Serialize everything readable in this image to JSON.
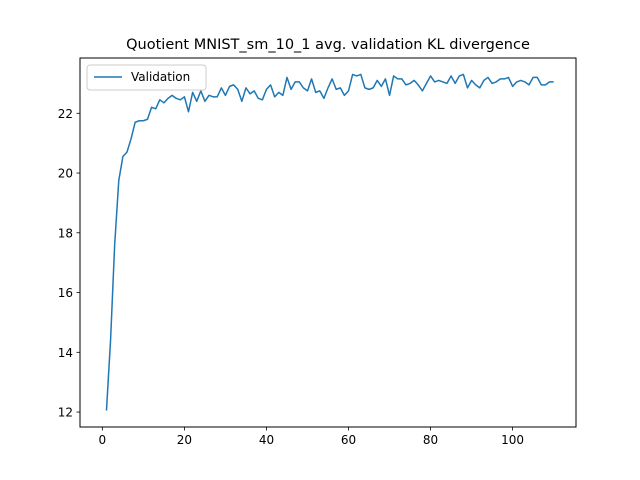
{
  "chart_data": {
    "type": "line",
    "title": "Quotient MNIST_sm_10_1 avg. validation KL divergence",
    "xlabel": "",
    "ylabel": "",
    "xlim": [
      -5.45,
      115.45
    ],
    "ylim": [
      11.5,
      23.85
    ],
    "xticks": [
      0,
      20,
      40,
      60,
      80,
      100
    ],
    "yticks": [
      12,
      14,
      16,
      18,
      20,
      22
    ],
    "legend": {
      "position": "top-left"
    },
    "grid": false,
    "colors": {
      "series": "#1f77b4"
    },
    "series": [
      {
        "name": "Validation",
        "x": [
          1,
          2,
          3,
          4,
          5,
          6,
          7,
          8,
          9,
          10,
          11,
          12,
          13,
          14,
          15,
          16,
          17,
          18,
          19,
          20,
          21,
          22,
          23,
          24,
          25,
          26,
          27,
          28,
          29,
          30,
          31,
          32,
          33,
          34,
          35,
          36,
          37,
          38,
          39,
          40,
          41,
          42,
          43,
          44,
          45,
          46,
          47,
          48,
          49,
          50,
          51,
          52,
          53,
          54,
          55,
          56,
          57,
          58,
          59,
          60,
          61,
          62,
          63,
          64,
          65,
          66,
          67,
          68,
          69,
          70,
          71,
          72,
          73,
          74,
          75,
          76,
          77,
          78,
          79,
          80,
          81,
          82,
          83,
          84,
          85,
          86,
          87,
          88,
          89,
          90,
          91,
          92,
          93,
          94,
          95,
          96,
          97,
          98,
          99,
          100,
          101,
          102,
          103,
          104,
          105,
          106,
          107,
          108,
          109,
          110
        ],
        "values": [
          12.05,
          14.4,
          17.6,
          19.75,
          20.55,
          20.7,
          21.15,
          21.7,
          21.75,
          21.75,
          21.8,
          22.2,
          22.15,
          22.45,
          22.35,
          22.5,
          22.6,
          22.5,
          22.45,
          22.55,
          22.05,
          22.7,
          22.4,
          22.75,
          22.4,
          22.6,
          22.55,
          22.55,
          22.85,
          22.6,
          22.9,
          22.95,
          22.8,
          22.4,
          22.85,
          22.65,
          22.75,
          22.5,
          22.45,
          22.8,
          22.95,
          22.55,
          22.7,
          22.6,
          23.2,
          22.8,
          23.05,
          23.05,
          22.85,
          22.75,
          23.15,
          22.7,
          22.75,
          22.5,
          22.85,
          23.15,
          22.8,
          22.85,
          22.6,
          22.75,
          23.3,
          23.25,
          23.3,
          22.85,
          22.8,
          22.85,
          23.1,
          22.9,
          23.15,
          22.6,
          23.25,
          23.15,
          23.15,
          22.95,
          23.0,
          23.1,
          22.95,
          22.75,
          23.0,
          23.25,
          23.05,
          23.1,
          23.05,
          23.0,
          23.25,
          23.0,
          23.25,
          23.3,
          22.85,
          23.1,
          22.95,
          22.85,
          23.1,
          23.2,
          23.0,
          23.05,
          23.15,
          23.15,
          23.2,
          22.9,
          23.05,
          23.1,
          23.05,
          22.95,
          23.2,
          23.2,
          22.95,
          22.95,
          23.05,
          23.05
        ]
      }
    ]
  }
}
